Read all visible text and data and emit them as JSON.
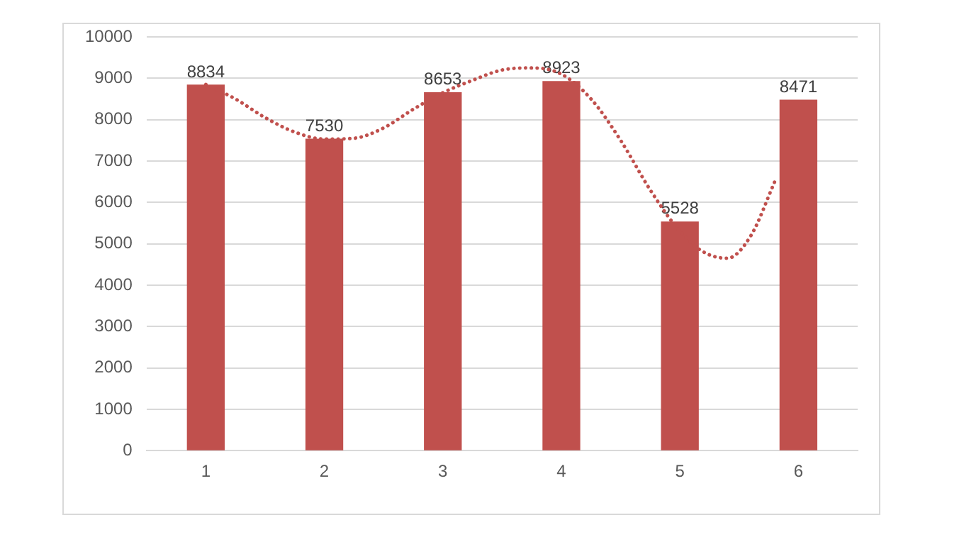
{
  "chart_data": {
    "type": "bar",
    "x": [
      1,
      2,
      3,
      4,
      5,
      6
    ],
    "xlim": [
      0.5,
      6.5
    ],
    "xticks": [
      1,
      2,
      3,
      4,
      5,
      6
    ],
    "series": [
      {
        "color": "#c0504d",
        "values": [
          8834,
          7530,
          8653,
          8923,
          5528,
          8471
        ],
        "value_labels": [
          "8834",
          "7530",
          "8653",
          "8923",
          "5528",
          "8471"
        ]
      },
      {
        "type": "line",
        "color": "#c0504d",
        "line_style": "dotted",
        "marker": "none",
        "x": [
          1,
          1.25,
          1.5,
          1.75,
          2,
          2.25,
          2.5,
          2.75,
          3,
          3.25,
          3.5,
          3.75,
          4,
          4.25,
          4.5,
          4.75,
          5,
          5.2,
          5.4,
          5.6,
          5.8
        ],
        "values": [
          8850,
          8500,
          8050,
          7700,
          7530,
          7550,
          7800,
          8250,
          8650,
          8950,
          9200,
          9250,
          9100,
          8500,
          7500,
          6300,
          5300,
          4800,
          4650,
          5200,
          6500
        ]
      }
    ],
    "ylim": [
      0,
      10000
    ],
    "yticks": [
      0,
      1000,
      2000,
      3000,
      4000,
      5000,
      6000,
      7000,
      8000,
      9000,
      10000
    ],
    "grid": "y",
    "legend": false
  }
}
